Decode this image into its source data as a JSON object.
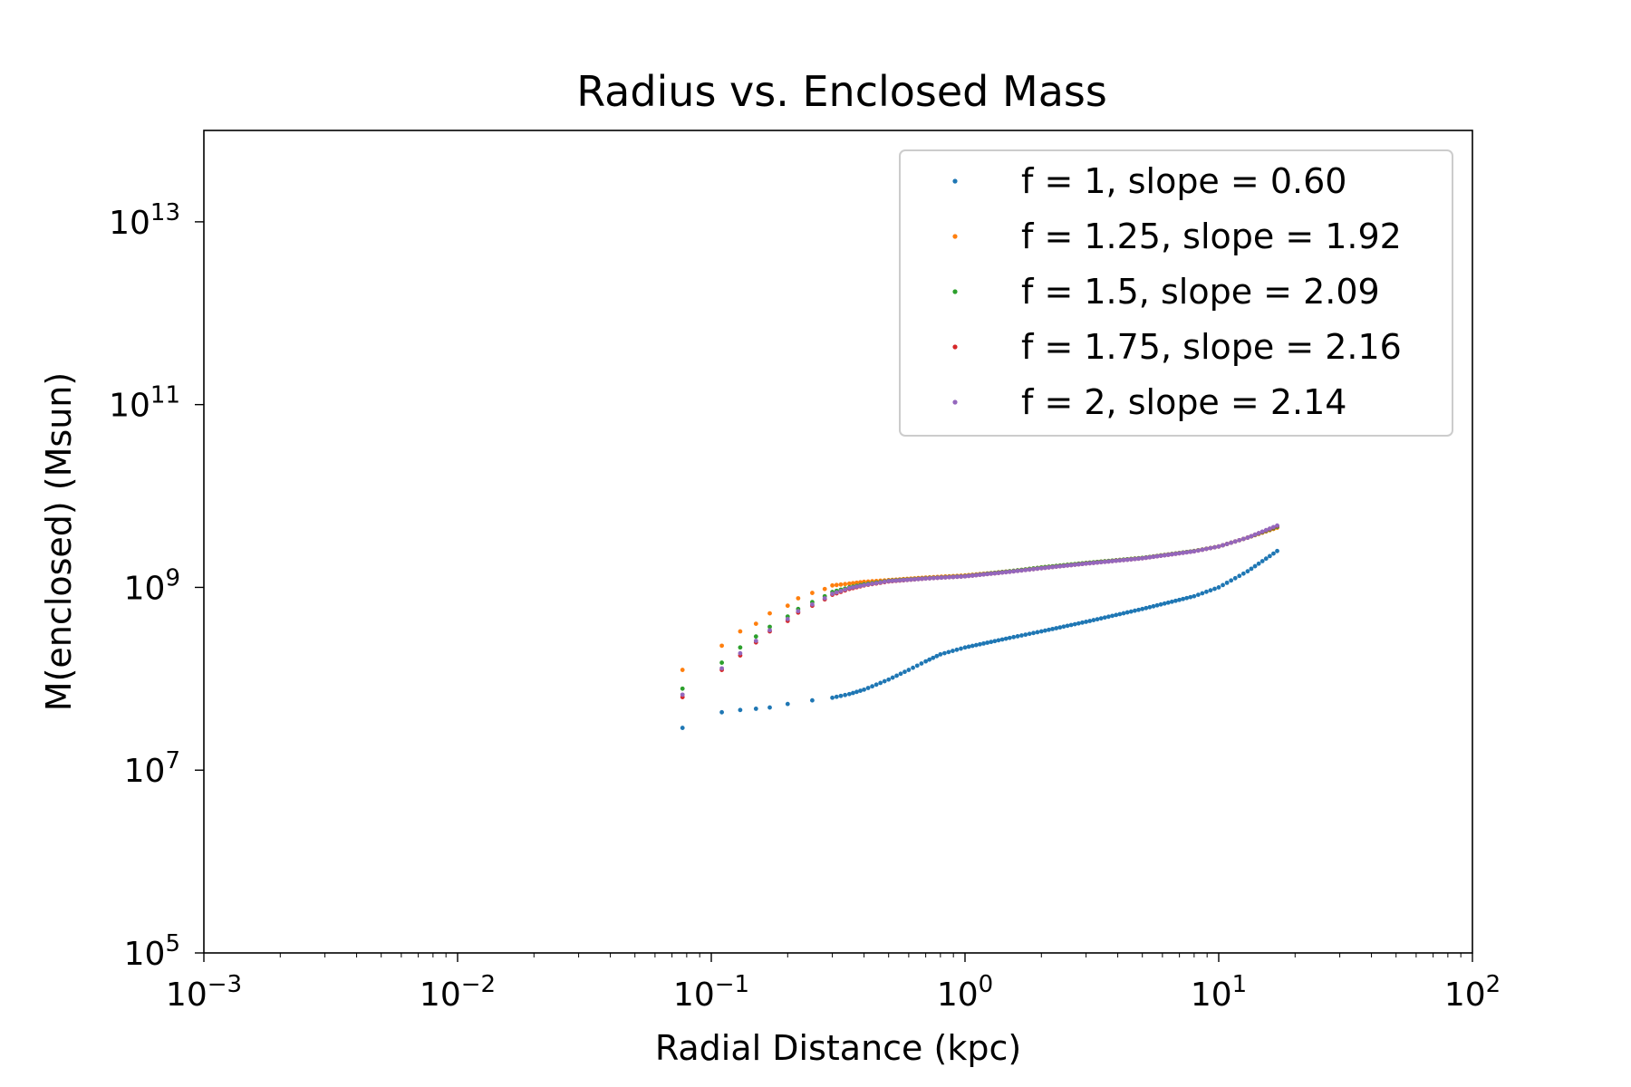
{
  "chart_data": {
    "type": "scatter",
    "title": "Radius vs. Enclosed Mass",
    "xlabel": "Radial Distance (kpc)",
    "ylabel": "M(enclosed) (Msun)",
    "xscale": "log",
    "yscale": "log",
    "xlim": [
      0.001,
      100
    ],
    "ylim": [
      100000,
      100000000000000.0
    ],
    "x_ticks": [
      0.001,
      0.01,
      0.1,
      1,
      10,
      100
    ],
    "x_tick_labels": [
      {
        "base": "10",
        "exp": "−3"
      },
      {
        "base": "10",
        "exp": "−2"
      },
      {
        "base": "10",
        "exp": "−1"
      },
      {
        "base": "10",
        "exp": "0"
      },
      {
        "base": "10",
        "exp": "1"
      },
      {
        "base": "10",
        "exp": "2"
      }
    ],
    "y_ticks": [
      100000,
      10000000,
      1000000000,
      100000000000,
      10000000000000
    ],
    "y_tick_labels": [
      {
        "base": "10",
        "exp": "5"
      },
      {
        "base": "10",
        "exp": "7"
      },
      {
        "base": "10",
        "exp": "9"
      },
      {
        "base": "10",
        "exp": "11"
      },
      {
        "base": "10",
        "exp": "13"
      }
    ],
    "grid": false,
    "legend_position": "top-right",
    "series": [
      {
        "name": "f = 1, slope = 0.60",
        "color": "#1f77b4",
        "points": [
          [
            0.077,
            29000000.0
          ],
          [
            0.11,
            43000000.0
          ],
          [
            0.13,
            45500000.0
          ],
          [
            0.15,
            47000000.0
          ],
          [
            0.17,
            48500000.0
          ],
          [
            0.2,
            53000000.0
          ],
          [
            0.25,
            58000000.0
          ],
          [
            0.3,
            62000000.0
          ],
          [
            0.35,
            68000000.0
          ],
          [
            0.4,
            76000000.0
          ],
          [
            0.5,
            98000000.0
          ],
          [
            0.6,
            125000000.0
          ],
          [
            0.7,
            155000000.0
          ],
          [
            0.8,
            185000000.0
          ],
          [
            1.0,
            220000000.0
          ],
          [
            1.5,
            280000000.0
          ],
          [
            2.0,
            330000000.0
          ],
          [
            3.0,
            420000000.0
          ],
          [
            5.0,
            580000000.0
          ],
          [
            8.0,
            800000000.0
          ],
          [
            10.0,
            1000000000.0
          ],
          [
            13.0,
            1500000000.0
          ],
          [
            17.0,
            2500000000.0
          ]
        ]
      },
      {
        "name": "f = 1.25, slope = 1.92",
        "color": "#ff7f0e",
        "points": [
          [
            0.077,
            125000000.0
          ],
          [
            0.11,
            230000000.0
          ],
          [
            0.13,
            330000000.0
          ],
          [
            0.15,
            400000000.0
          ],
          [
            0.17,
            520000000.0
          ],
          [
            0.2,
            630000000.0
          ],
          [
            0.22,
            760000000.0
          ],
          [
            0.25,
            870000000.0
          ],
          [
            0.28,
            960000000.0
          ],
          [
            0.3,
            1050000000.0
          ],
          [
            0.35,
            1100000000.0
          ],
          [
            0.4,
            1150000000.0
          ],
          [
            0.5,
            1200000000.0
          ],
          [
            0.7,
            1280000000.0
          ],
          [
            1.0,
            1350000000.0
          ],
          [
            1.5,
            1500000000.0
          ],
          [
            2.0,
            1650000000.0
          ],
          [
            3.0,
            1850000000.0
          ],
          [
            5.0,
            2100000000.0
          ],
          [
            8.0,
            2500000000.0
          ],
          [
            10.0,
            2800000000.0
          ],
          [
            13.0,
            3500000000.0
          ],
          [
            17.0,
            4500000000.0
          ]
        ]
      },
      {
        "name": "f = 1.5, slope = 2.09",
        "color": "#2ca02c",
        "points": [
          [
            0.077,
            78000000.0
          ],
          [
            0.11,
            150000000.0
          ],
          [
            0.13,
            220000000.0
          ],
          [
            0.15,
            290000000.0
          ],
          [
            0.17,
            370000000.0
          ],
          [
            0.2,
            480000000.0
          ],
          [
            0.22,
            580000000.0
          ],
          [
            0.25,
            690000000.0
          ],
          [
            0.28,
            800000000.0
          ],
          [
            0.3,
            890000000.0
          ],
          [
            0.35,
            1000000000.0
          ],
          [
            0.4,
            1080000000.0
          ],
          [
            0.5,
            1180000000.0
          ],
          [
            0.7,
            1260000000.0
          ],
          [
            1.0,
            1330000000.0
          ],
          [
            1.5,
            1500000000.0
          ],
          [
            2.0,
            1650000000.0
          ],
          [
            3.0,
            1850000000.0
          ],
          [
            5.0,
            2100000000.0
          ],
          [
            8.0,
            2500000000.0
          ],
          [
            10.0,
            2800000000.0
          ],
          [
            13.0,
            3500000000.0
          ],
          [
            17.0,
            4600000000.0
          ]
        ]
      },
      {
        "name": "f = 1.75, slope = 2.16",
        "color": "#d62728",
        "points": [
          [
            0.077,
            63000000.0
          ],
          [
            0.11,
            125000000.0
          ],
          [
            0.13,
            180000000.0
          ],
          [
            0.15,
            250000000.0
          ],
          [
            0.17,
            330000000.0
          ],
          [
            0.2,
            430000000.0
          ],
          [
            0.22,
            530000000.0
          ],
          [
            0.25,
            630000000.0
          ],
          [
            0.28,
            740000000.0
          ],
          [
            0.3,
            830000000.0
          ],
          [
            0.35,
            960000000.0
          ],
          [
            0.4,
            1050000000.0
          ],
          [
            0.5,
            1160000000.0
          ],
          [
            0.7,
            1250000000.0
          ],
          [
            1.0,
            1320000000.0
          ],
          [
            1.5,
            1480000000.0
          ],
          [
            2.0,
            1620000000.0
          ],
          [
            3.0,
            1820000000.0
          ],
          [
            5.0,
            2080000000.0
          ],
          [
            8.0,
            2480000000.0
          ],
          [
            10.0,
            2800000000.0
          ],
          [
            13.0,
            3500000000.0
          ],
          [
            17.0,
            4700000000.0
          ]
        ]
      },
      {
        "name": "f = 2, slope = 2.14",
        "color": "#9467bd",
        "points": [
          [
            0.077,
            67000000.0
          ],
          [
            0.11,
            130000000.0
          ],
          [
            0.13,
            190000000.0
          ],
          [
            0.15,
            260000000.0
          ],
          [
            0.17,
            340000000.0
          ],
          [
            0.2,
            450000000.0
          ],
          [
            0.22,
            550000000.0
          ],
          [
            0.25,
            650000000.0
          ],
          [
            0.28,
            760000000.0
          ],
          [
            0.3,
            850000000.0
          ],
          [
            0.35,
            980000000.0
          ],
          [
            0.4,
            1060000000.0
          ],
          [
            0.5,
            1170000000.0
          ],
          [
            0.7,
            1250000000.0
          ],
          [
            1.0,
            1320000000.0
          ],
          [
            1.5,
            1480000000.0
          ],
          [
            2.0,
            1620000000.0
          ],
          [
            3.0,
            1820000000.0
          ],
          [
            5.0,
            2080000000.0
          ],
          [
            8.0,
            2480000000.0
          ],
          [
            10.0,
            2800000000.0
          ],
          [
            13.0,
            3500000000.0
          ],
          [
            17.0,
            4750000000.0
          ]
        ]
      }
    ]
  }
}
